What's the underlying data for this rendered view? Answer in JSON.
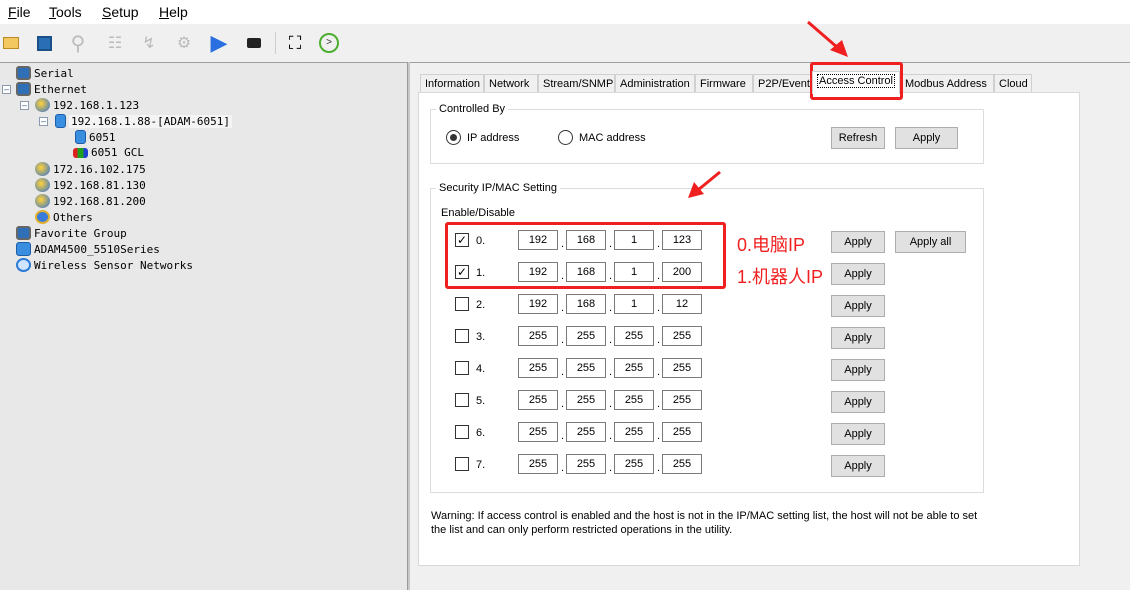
{
  "menu": [
    {
      "label": "File",
      "key": "F",
      "rest": "ile"
    },
    {
      "label": "Tools",
      "key": "T",
      "rest": "ools"
    },
    {
      "label": "Setup",
      "key": "S",
      "rest": "etup"
    },
    {
      "label": "Help",
      "key": "H",
      "rest": "elp"
    }
  ],
  "toolbar": [
    "open-icon",
    "save-icon",
    "search-icon",
    "tree-icon",
    "flash-icon",
    "gear-icon",
    "play-icon",
    "camera-icon",
    "fullscreen-icon",
    "refresh-icon"
  ],
  "tree": {
    "serial": "Serial",
    "ethernet": "Ethernet",
    "host1": "192.168.1.123",
    "device": "192.168.1.88-[ADAM-6051]",
    "dev_child1": "6051",
    "dev_child2": "6051 GCL",
    "host2": "172.16.102.175",
    "host3": "192.168.81.130",
    "host4": "192.168.81.200",
    "others": "Others",
    "favorite": "Favorite Group",
    "adam4500": "ADAM4500_5510Series",
    "wsn": "Wireless Sensor Networks"
  },
  "tabs": [
    "Information",
    "Network",
    "Stream/SNMP",
    "Administration",
    "Firmware",
    "P2P/Event",
    "Access Control",
    "Modbus Address",
    "Cloud"
  ],
  "active_tab": "Access Control",
  "controlled_by": {
    "legend": "Controlled By",
    "ip_label": "IP address",
    "mac_label": "MAC address",
    "selected": "IP address",
    "refresh": "Refresh",
    "apply": "Apply"
  },
  "security": {
    "legend": "Security IP/MAC Setting",
    "enable_label": "Enable/Disable",
    "apply": "Apply",
    "apply_all": "Apply all",
    "rows": [
      {
        "label": "0.",
        "checked": true,
        "ip": [
          "192",
          "168",
          "1",
          "123"
        ]
      },
      {
        "label": "1.",
        "checked": true,
        "ip": [
          "192",
          "168",
          "1",
          "200"
        ]
      },
      {
        "label": "2.",
        "checked": false,
        "ip": [
          "192",
          "168",
          "1",
          "12"
        ]
      },
      {
        "label": "3.",
        "checked": false,
        "ip": [
          "255",
          "255",
          "255",
          "255"
        ]
      },
      {
        "label": "4.",
        "checked": false,
        "ip": [
          "255",
          "255",
          "255",
          "255"
        ]
      },
      {
        "label": "5.",
        "checked": false,
        "ip": [
          "255",
          "255",
          "255",
          "255"
        ]
      },
      {
        "label": "6.",
        "checked": false,
        "ip": [
          "255",
          "255",
          "255",
          "255"
        ]
      },
      {
        "label": "7.",
        "checked": false,
        "ip": [
          "255",
          "255",
          "255",
          "255"
        ]
      }
    ]
  },
  "warning": {
    "line1": "Warning: If access control is enabled and the host is not in the IP/MAC setting list, the host will not be able to set",
    "line2": "the list and can only perform restricted operations in the utility."
  },
  "annotations": {
    "note0": "0.电脑IP",
    "note1": "1.机器人IP",
    "color": "#f02020"
  }
}
